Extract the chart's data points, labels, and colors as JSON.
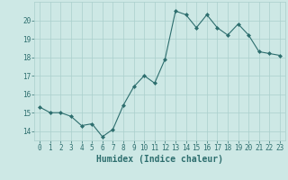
{
  "x": [
    0,
    1,
    2,
    3,
    4,
    5,
    6,
    7,
    8,
    9,
    10,
    11,
    12,
    13,
    14,
    15,
    16,
    17,
    18,
    19,
    20,
    21,
    22,
    23
  ],
  "y": [
    15.3,
    15.0,
    15.0,
    14.8,
    14.3,
    14.4,
    13.7,
    14.1,
    15.4,
    16.4,
    17.0,
    16.6,
    17.9,
    20.5,
    20.3,
    19.6,
    20.3,
    19.6,
    19.2,
    19.8,
    19.2,
    18.3,
    18.2,
    18.1
  ],
  "line_color": "#2d6e6e",
  "marker": "D",
  "marker_size": 2,
  "bg_color": "#cde8e5",
  "grid_color": "#aacfcc",
  "xlabel": "Humidex (Indice chaleur)",
  "ylim": [
    13.5,
    21.0
  ],
  "xlim": [
    -0.5,
    23.5
  ],
  "yticks": [
    14,
    15,
    16,
    17,
    18,
    19,
    20
  ],
  "xticks": [
    0,
    1,
    2,
    3,
    4,
    5,
    6,
    7,
    8,
    9,
    10,
    11,
    12,
    13,
    14,
    15,
    16,
    17,
    18,
    19,
    20,
    21,
    22,
    23
  ],
  "font_color": "#2d6e6e",
  "font_size": 5.5,
  "label_font_size": 7
}
